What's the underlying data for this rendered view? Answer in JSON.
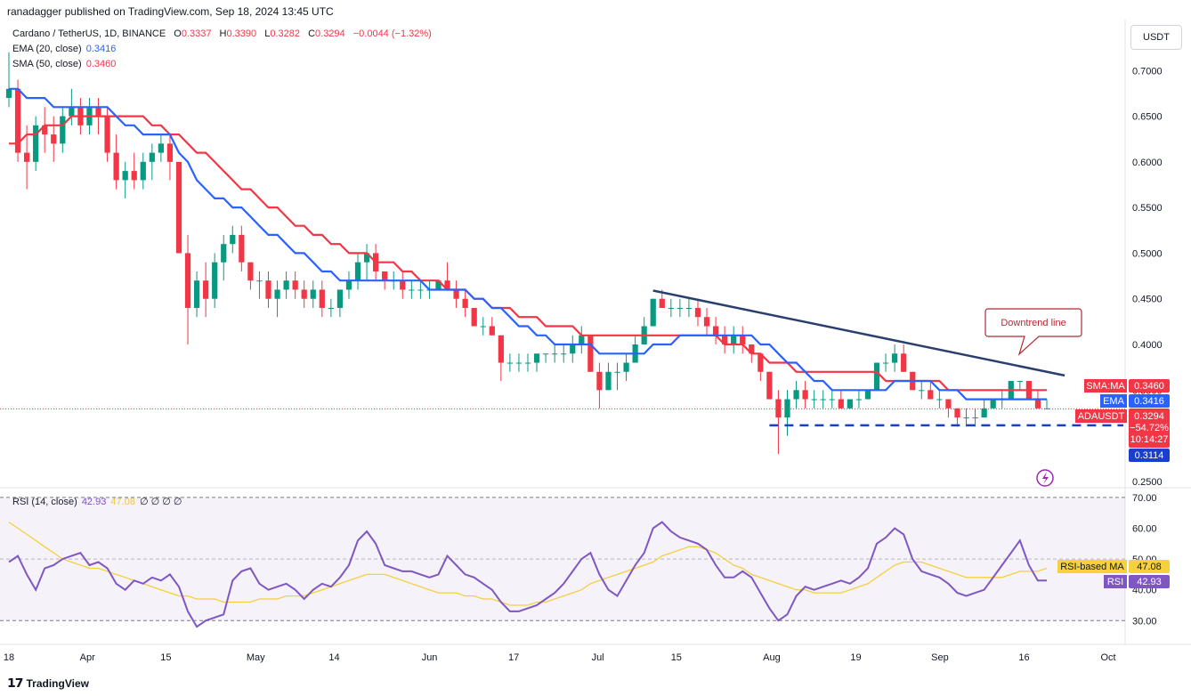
{
  "header": {
    "published": "ranadagger published on TradingView.com, Sep 18, 2024 13:45 UTC"
  },
  "currency": "USDT",
  "legend": {
    "symbol": "Cardano / TetherUS, 1D, BINANCE",
    "o_label": "O",
    "o": "0.3337",
    "h_label": "H",
    "h": "0.3390",
    "l_label": "L",
    "l": "0.3282",
    "c_label": "C",
    "c": "0.3294",
    "change": "−0.0044 (−1.32%)",
    "ema_label": "EMA (20, close)",
    "ema": "0.3416",
    "sma_label": "SMA (50, close)",
    "sma": "0.3460",
    "rsi_label": "RSI (14, close)",
    "rsi": "42.93",
    "rsi_ma": "47.08",
    "rsi_extra": "∅ ∅ ∅ ∅"
  },
  "price_tags": {
    "sma_name": "SMA:MA",
    "sma_value": "0.3460",
    "ema_name": "EMA",
    "ema_value": "0.3416",
    "symbol_name": "ADAUSDT",
    "last_value": "0.3294",
    "pct": "−54.72%",
    "countdown": "10:14:27",
    "support_value": "0.3114"
  },
  "rsi_tags": {
    "ma_name": "RSI-based MA",
    "ma_value": "47.08",
    "rsi_name": "RSI",
    "rsi_value": "42.93"
  },
  "annotation": {
    "text": "Downtrend line"
  },
  "footer": {
    "brand": "TradingView"
  },
  "colors": {
    "up": "#089981",
    "down": "#f23645",
    "ema": "#2962ff",
    "sma": "#f23645",
    "trend": "#2a3f6e",
    "support": "#1a3fcc",
    "rsi": "#7e57c2",
    "rsi_ma": "#f5d03f"
  },
  "chart_data": [
    {
      "type": "candlestick",
      "title": "Cardano / TetherUS, 1D, BINANCE",
      "x_ticks": [
        "18",
        "Apr",
        "15",
        "May",
        "14",
        "Jun",
        "17",
        "Jul",
        "15",
        "Aug",
        "19",
        "Sep",
        "16",
        "Oct"
      ],
      "y_ticks": [
        "0.7000",
        "0.6500",
        "0.6000",
        "0.5500",
        "0.5000",
        "0.4500",
        "0.4000",
        "0.3500",
        "0.3000",
        "0.2500"
      ],
      "ylim": [
        0.245,
        0.75
      ],
      "candles": [
        [
          0.67,
          0.72,
          0.66,
          0.68
        ],
        [
          0.68,
          0.69,
          0.6,
          0.61
        ],
        [
          0.61,
          0.64,
          0.57,
          0.6
        ],
        [
          0.6,
          0.65,
          0.59,
          0.64
        ],
        [
          0.64,
          0.66,
          0.61,
          0.63
        ],
        [
          0.63,
          0.65,
          0.6,
          0.62
        ],
        [
          0.62,
          0.66,
          0.61,
          0.65
        ],
        [
          0.65,
          0.68,
          0.64,
          0.66
        ],
        [
          0.66,
          0.67,
          0.63,
          0.64
        ],
        [
          0.64,
          0.67,
          0.63,
          0.66
        ],
        [
          0.66,
          0.67,
          0.63,
          0.65
        ],
        [
          0.65,
          0.66,
          0.6,
          0.61
        ],
        [
          0.61,
          0.63,
          0.57,
          0.58
        ],
        [
          0.58,
          0.6,
          0.56,
          0.59
        ],
        [
          0.59,
          0.61,
          0.57,
          0.58
        ],
        [
          0.58,
          0.61,
          0.57,
          0.6
        ],
        [
          0.6,
          0.62,
          0.58,
          0.61
        ],
        [
          0.61,
          0.63,
          0.6,
          0.62
        ],
        [
          0.62,
          0.63,
          0.58,
          0.6
        ],
        [
          0.6,
          0.6,
          0.5,
          0.5
        ],
        [
          0.5,
          0.52,
          0.4,
          0.44
        ],
        [
          0.44,
          0.48,
          0.43,
          0.47
        ],
        [
          0.47,
          0.49,
          0.43,
          0.45
        ],
        [
          0.45,
          0.5,
          0.44,
          0.49
        ],
        [
          0.49,
          0.52,
          0.47,
          0.51
        ],
        [
          0.51,
          0.53,
          0.5,
          0.52
        ],
        [
          0.52,
          0.53,
          0.48,
          0.49
        ],
        [
          0.49,
          0.49,
          0.46,
          0.47
        ],
        [
          0.47,
          0.48,
          0.45,
          0.47
        ],
        [
          0.47,
          0.48,
          0.44,
          0.45
        ],
        [
          0.45,
          0.47,
          0.43,
          0.46
        ],
        [
          0.46,
          0.48,
          0.45,
          0.47
        ],
        [
          0.47,
          0.48,
          0.45,
          0.46
        ],
        [
          0.46,
          0.47,
          0.44,
          0.45
        ],
        [
          0.45,
          0.47,
          0.44,
          0.46
        ],
        [
          0.46,
          0.47,
          0.43,
          0.44
        ],
        [
          0.44,
          0.45,
          0.43,
          0.44
        ],
        [
          0.44,
          0.46,
          0.43,
          0.46
        ],
        [
          0.46,
          0.48,
          0.45,
          0.47
        ],
        [
          0.47,
          0.5,
          0.46,
          0.49
        ],
        [
          0.49,
          0.51,
          0.47,
          0.5
        ],
        [
          0.5,
          0.51,
          0.47,
          0.48
        ],
        [
          0.48,
          0.48,
          0.46,
          0.47
        ],
        [
          0.47,
          0.48,
          0.46,
          0.47
        ],
        [
          0.47,
          0.48,
          0.45,
          0.46
        ],
        [
          0.46,
          0.47,
          0.45,
          0.46
        ],
        [
          0.46,
          0.47,
          0.45,
          0.46
        ],
        [
          0.46,
          0.47,
          0.45,
          0.46
        ],
        [
          0.46,
          0.47,
          0.46,
          0.47
        ],
        [
          0.47,
          0.49,
          0.46,
          0.46
        ],
        [
          0.46,
          0.47,
          0.44,
          0.45
        ],
        [
          0.45,
          0.46,
          0.43,
          0.44
        ],
        [
          0.44,
          0.44,
          0.42,
          0.42
        ],
        [
          0.42,
          0.43,
          0.41,
          0.42
        ],
        [
          0.42,
          0.43,
          0.41,
          0.41
        ],
        [
          0.41,
          0.41,
          0.36,
          0.38
        ],
        [
          0.38,
          0.39,
          0.37,
          0.38
        ],
        [
          0.38,
          0.39,
          0.37,
          0.38
        ],
        [
          0.38,
          0.39,
          0.37,
          0.38
        ],
        [
          0.38,
          0.39,
          0.37,
          0.39
        ],
        [
          0.39,
          0.39,
          0.38,
          0.39
        ],
        [
          0.39,
          0.4,
          0.38,
          0.39
        ],
        [
          0.39,
          0.4,
          0.38,
          0.39
        ],
        [
          0.39,
          0.41,
          0.38,
          0.4
        ],
        [
          0.4,
          0.42,
          0.39,
          0.41
        ],
        [
          0.41,
          0.41,
          0.37,
          0.37
        ],
        [
          0.37,
          0.38,
          0.33,
          0.35
        ],
        [
          0.35,
          0.38,
          0.35,
          0.37
        ],
        [
          0.37,
          0.38,
          0.35,
          0.37
        ],
        [
          0.37,
          0.39,
          0.36,
          0.38
        ],
        [
          0.38,
          0.41,
          0.38,
          0.4
        ],
        [
          0.4,
          0.43,
          0.4,
          0.42
        ],
        [
          0.42,
          0.45,
          0.42,
          0.45
        ],
        [
          0.45,
          0.46,
          0.44,
          0.44
        ],
        [
          0.44,
          0.45,
          0.43,
          0.44
        ],
        [
          0.44,
          0.45,
          0.43,
          0.44
        ],
        [
          0.44,
          0.45,
          0.43,
          0.44
        ],
        [
          0.44,
          0.45,
          0.42,
          0.43
        ],
        [
          0.43,
          0.44,
          0.41,
          0.42
        ],
        [
          0.42,
          0.43,
          0.4,
          0.41
        ],
        [
          0.41,
          0.42,
          0.39,
          0.4
        ],
        [
          0.4,
          0.42,
          0.39,
          0.41
        ],
        [
          0.41,
          0.42,
          0.39,
          0.4
        ],
        [
          0.4,
          0.4,
          0.38,
          0.39
        ],
        [
          0.39,
          0.39,
          0.36,
          0.37
        ],
        [
          0.37,
          0.37,
          0.34,
          0.34
        ],
        [
          0.34,
          0.35,
          0.28,
          0.32
        ],
        [
          0.32,
          0.35,
          0.3,
          0.34
        ],
        [
          0.34,
          0.36,
          0.33,
          0.35
        ],
        [
          0.35,
          0.36,
          0.33,
          0.34
        ],
        [
          0.34,
          0.35,
          0.33,
          0.34
        ],
        [
          0.34,
          0.35,
          0.33,
          0.34
        ],
        [
          0.34,
          0.35,
          0.33,
          0.34
        ],
        [
          0.34,
          0.35,
          0.33,
          0.33
        ],
        [
          0.33,
          0.34,
          0.33,
          0.34
        ],
        [
          0.34,
          0.35,
          0.33,
          0.34
        ],
        [
          0.34,
          0.35,
          0.34,
          0.35
        ],
        [
          0.35,
          0.38,
          0.35,
          0.38
        ],
        [
          0.38,
          0.39,
          0.37,
          0.38
        ],
        [
          0.38,
          0.4,
          0.37,
          0.39
        ],
        [
          0.39,
          0.4,
          0.37,
          0.37
        ],
        [
          0.37,
          0.37,
          0.35,
          0.35
        ],
        [
          0.35,
          0.36,
          0.34,
          0.35
        ],
        [
          0.35,
          0.36,
          0.34,
          0.34
        ],
        [
          0.34,
          0.35,
          0.33,
          0.34
        ],
        [
          0.34,
          0.34,
          0.32,
          0.33
        ],
        [
          0.33,
          0.33,
          0.31,
          0.32
        ],
        [
          0.32,
          0.33,
          0.31,
          0.32
        ],
        [
          0.32,
          0.33,
          0.31,
          0.32
        ],
        [
          0.32,
          0.34,
          0.32,
          0.33
        ],
        [
          0.33,
          0.34,
          0.33,
          0.34
        ],
        [
          0.34,
          0.35,
          0.33,
          0.34
        ],
        [
          0.34,
          0.36,
          0.34,
          0.36
        ],
        [
          0.36,
          0.36,
          0.35,
          0.36
        ],
        [
          0.36,
          0.36,
          0.34,
          0.34
        ],
        [
          0.34,
          0.35,
          0.33,
          0.33
        ],
        [
          0.33,
          0.34,
          0.33,
          0.33
        ]
      ],
      "ema": [
        0.68,
        0.68,
        0.67,
        0.67,
        0.67,
        0.66,
        0.66,
        0.66,
        0.66,
        0.66,
        0.66,
        0.66,
        0.65,
        0.64,
        0.64,
        0.63,
        0.63,
        0.63,
        0.63,
        0.61,
        0.6,
        0.58,
        0.57,
        0.56,
        0.56,
        0.55,
        0.55,
        0.54,
        0.53,
        0.52,
        0.52,
        0.51,
        0.5,
        0.5,
        0.49,
        0.48,
        0.48,
        0.47,
        0.47,
        0.47,
        0.47,
        0.47,
        0.47,
        0.47,
        0.47,
        0.47,
        0.47,
        0.46,
        0.46,
        0.46,
        0.46,
        0.46,
        0.45,
        0.45,
        0.44,
        0.44,
        0.43,
        0.42,
        0.42,
        0.41,
        0.41,
        0.4,
        0.4,
        0.4,
        0.4,
        0.4,
        0.39,
        0.39,
        0.39,
        0.39,
        0.39,
        0.39,
        0.4,
        0.4,
        0.4,
        0.41,
        0.41,
        0.41,
        0.41,
        0.41,
        0.41,
        0.41,
        0.41,
        0.41,
        0.4,
        0.4,
        0.39,
        0.38,
        0.38,
        0.37,
        0.36,
        0.36,
        0.35,
        0.35,
        0.35,
        0.35,
        0.35,
        0.35,
        0.35,
        0.36,
        0.36,
        0.36,
        0.36,
        0.36,
        0.35,
        0.35,
        0.35,
        0.34,
        0.34,
        0.34,
        0.34,
        0.34,
        0.34,
        0.34,
        0.34,
        0.34,
        0.34
      ],
      "sma": [
        0.62,
        0.62,
        0.63,
        0.63,
        0.64,
        0.64,
        0.64,
        0.65,
        0.65,
        0.65,
        0.65,
        0.65,
        0.65,
        0.65,
        0.65,
        0.65,
        0.64,
        0.64,
        0.63,
        0.63,
        0.62,
        0.61,
        0.61,
        0.6,
        0.59,
        0.58,
        0.57,
        0.57,
        0.56,
        0.55,
        0.55,
        0.54,
        0.53,
        0.53,
        0.52,
        0.52,
        0.51,
        0.51,
        0.5,
        0.5,
        0.5,
        0.49,
        0.49,
        0.49,
        0.48,
        0.48,
        0.47,
        0.47,
        0.47,
        0.46,
        0.46,
        0.46,
        0.45,
        0.45,
        0.44,
        0.44,
        0.44,
        0.43,
        0.43,
        0.43,
        0.42,
        0.42,
        0.42,
        0.42,
        0.41,
        0.41,
        0.41,
        0.41,
        0.41,
        0.41,
        0.41,
        0.41,
        0.41,
        0.41,
        0.41,
        0.41,
        0.41,
        0.41,
        0.41,
        0.41,
        0.4,
        0.4,
        0.4,
        0.39,
        0.39,
        0.38,
        0.38,
        0.38,
        0.37,
        0.37,
        0.37,
        0.37,
        0.37,
        0.37,
        0.37,
        0.37,
        0.37,
        0.37,
        0.36,
        0.36,
        0.36,
        0.36,
        0.36,
        0.36,
        0.36,
        0.35,
        0.35,
        0.35,
        0.35,
        0.35,
        0.35,
        0.35,
        0.35,
        0.35,
        0.35,
        0.35,
        0.35
      ],
      "downtrend_line": [
        [
          0.459,
          0.366
        ]
      ],
      "support_level": 0.3114,
      "last_price": 0.3294
    },
    {
      "type": "line",
      "title": "RSI (14, close)",
      "y_ticks": [
        "70.00",
        "60.00",
        "50.00",
        "40.00",
        "30.00"
      ],
      "ylim": [
        24,
        72
      ],
      "bands": [
        30,
        50,
        70
      ],
      "series": [
        {
          "name": "RSI",
          "values": [
            49,
            51,
            45,
            40,
            47,
            48,
            50,
            51,
            52,
            48,
            49,
            47,
            42,
            40,
            43,
            42,
            44,
            43,
            45,
            41,
            33,
            28,
            30,
            31,
            32,
            43,
            46,
            47,
            42,
            40,
            41,
            42,
            40,
            37,
            40,
            42,
            41,
            44,
            48,
            56,
            59,
            55,
            48,
            47,
            46,
            46,
            45,
            44,
            45,
            51,
            48,
            45,
            44,
            42,
            40,
            36,
            33,
            33,
            34,
            35,
            37,
            39,
            42,
            46,
            50,
            52,
            45,
            40,
            38,
            43,
            48,
            52,
            60,
            62,
            59,
            57,
            56,
            55,
            53,
            48,
            44,
            44,
            46,
            44,
            39,
            34,
            30,
            32,
            38,
            41,
            40,
            41,
            42,
            43,
            42,
            44,
            47,
            55,
            57,
            60,
            58,
            50,
            46,
            45,
            44,
            42,
            39,
            38,
            39,
            40,
            44,
            48,
            52,
            56,
            48,
            43,
            43
          ]
        },
        {
          "name": "RSI-based MA",
          "values": [
            62,
            60,
            58,
            56,
            54,
            52,
            50,
            49,
            48,
            47,
            47,
            46,
            45,
            44,
            43,
            42,
            41,
            40,
            39,
            38,
            38,
            37,
            37,
            37,
            36,
            36,
            36,
            36,
            37,
            37,
            37,
            38,
            38,
            38,
            39,
            40,
            41,
            42,
            43,
            44,
            45,
            45,
            45,
            44,
            43,
            42,
            41,
            40,
            39,
            39,
            39,
            38,
            38,
            37,
            37,
            36,
            35,
            35,
            35,
            36,
            36,
            37,
            38,
            39,
            40,
            42,
            43,
            44,
            45,
            46,
            47,
            48,
            49,
            51,
            52,
            53,
            54,
            54,
            53,
            52,
            50,
            48,
            47,
            45,
            44,
            43,
            42,
            41,
            40,
            40,
            39,
            39,
            39,
            39,
            40,
            41,
            42,
            44,
            46,
            48,
            49,
            49,
            49,
            48,
            47,
            46,
            45,
            44,
            44,
            44,
            44,
            44,
            45,
            46,
            46,
            46,
            47
          ]
        }
      ]
    }
  ]
}
